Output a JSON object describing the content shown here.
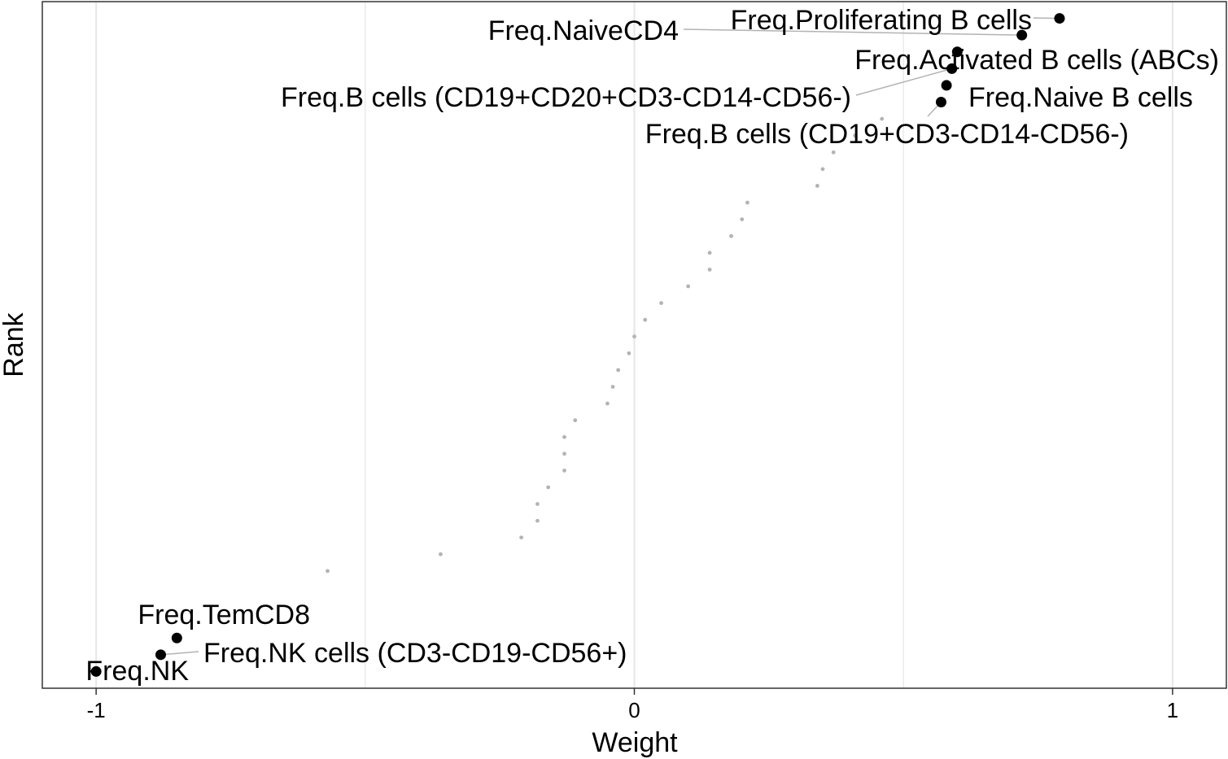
{
  "chart_data": {
    "type": "scatter",
    "title": "",
    "xlabel": "Weight",
    "ylabel": "Rank",
    "xlim": [
      -1.1,
      1.1
    ],
    "ylim": [
      0,
      41
    ],
    "grid": true,
    "x_ticks": [
      -1,
      0,
      1
    ],
    "x_tick_labels": [
      "-1",
      "0",
      "1"
    ],
    "colors": {
      "highlight_point": "#000000",
      "other_point": "#b3b3b3",
      "gridline": "#e6e6e6",
      "leader_line": "#b3b3b3"
    },
    "highlighted_points": [
      {
        "rank": 40,
        "weight": 0.79,
        "label": "Freq.Proliferating B cells"
      },
      {
        "rank": 39,
        "weight": 0.72,
        "label": "Freq.NaiveCD4"
      },
      {
        "rank": 38,
        "weight": 0.6,
        "label": "Freq.Activated B cells (ABCs)"
      },
      {
        "rank": 37,
        "weight": 0.59,
        "label": "Freq.B cells (CD19+CD20+CD3-CD14-CD56-)"
      },
      {
        "rank": 36,
        "weight": 0.58,
        "label": "Freq.Naive B cells"
      },
      {
        "rank": 35,
        "weight": 0.57,
        "label": "Freq.B cells (CD19+CD3-CD14-CD56-)"
      },
      {
        "rank": 3,
        "weight": -0.85,
        "label": "Freq.TemCD8"
      },
      {
        "rank": 2,
        "weight": -0.88,
        "label": "Freq.NK cells (CD3-CD19-CD56+)"
      },
      {
        "rank": 1,
        "weight": -1.0,
        "label": "Freq.NK"
      }
    ],
    "other_points": [
      {
        "rank": 34,
        "weight": 0.46
      },
      {
        "rank": 33,
        "weight": 0.41
      },
      {
        "rank": 32,
        "weight": 0.37
      },
      {
        "rank": 31,
        "weight": 0.35
      },
      {
        "rank": 30,
        "weight": 0.34
      },
      {
        "rank": 29,
        "weight": 0.21
      },
      {
        "rank": 28,
        "weight": 0.2
      },
      {
        "rank": 27,
        "weight": 0.18
      },
      {
        "rank": 26,
        "weight": 0.14
      },
      {
        "rank": 25,
        "weight": 0.14
      },
      {
        "rank": 24,
        "weight": 0.1
      },
      {
        "rank": 23,
        "weight": 0.05
      },
      {
        "rank": 22,
        "weight": 0.02
      },
      {
        "rank": 21,
        "weight": 0.0
      },
      {
        "rank": 20,
        "weight": -0.01
      },
      {
        "rank": 19,
        "weight": -0.03
      },
      {
        "rank": 18,
        "weight": -0.04
      },
      {
        "rank": 17,
        "weight": -0.05
      },
      {
        "rank": 16,
        "weight": -0.11
      },
      {
        "rank": 15,
        "weight": -0.13
      },
      {
        "rank": 14,
        "weight": -0.13
      },
      {
        "rank": 13,
        "weight": -0.13
      },
      {
        "rank": 12,
        "weight": -0.16
      },
      {
        "rank": 11,
        "weight": -0.18
      },
      {
        "rank": 10,
        "weight": -0.18
      },
      {
        "rank": 9,
        "weight": -0.21
      },
      {
        "rank": 8,
        "weight": -0.36
      },
      {
        "rank": 7,
        "weight": -0.57
      }
    ]
  }
}
